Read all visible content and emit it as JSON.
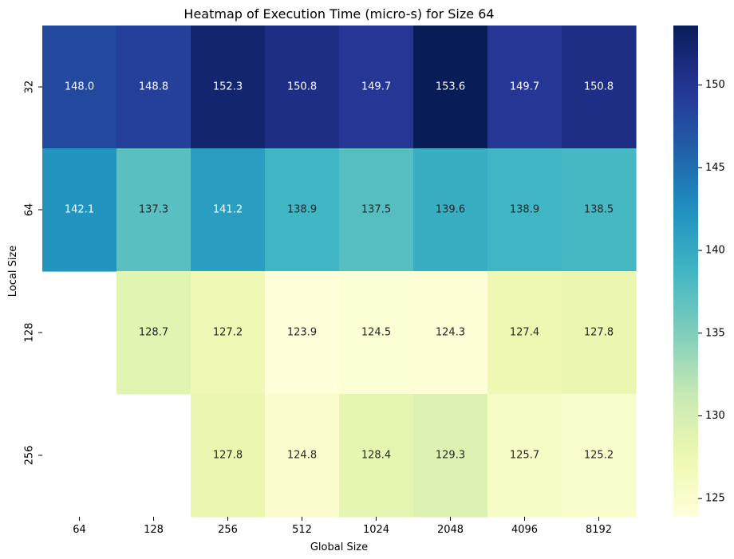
{
  "chart_data": {
    "type": "heatmap",
    "title": "Heatmap of Execution Time (micro-s) for Size 64",
    "xlabel": "Global Size",
    "ylabel": "Local Size",
    "x_categories": [
      "64",
      "128",
      "256",
      "512",
      "1024",
      "2048",
      "4096",
      "8192"
    ],
    "y_categories": [
      "32",
      "64",
      "128",
      "256"
    ],
    "values": [
      [
        148.0,
        148.8,
        152.3,
        150.8,
        149.7,
        153.6,
        149.7,
        150.8
      ],
      [
        142.1,
        137.3,
        141.2,
        138.9,
        137.5,
        139.6,
        138.9,
        138.5
      ],
      [
        null,
        128.7,
        127.2,
        123.9,
        124.5,
        124.3,
        127.4,
        127.8
      ],
      [
        null,
        null,
        127.8,
        124.8,
        128.4,
        129.3,
        125.7,
        125.2
      ]
    ],
    "value_format": "0.1f",
    "colormap": "YlGnBu",
    "color_range": [
      123.9,
      153.6
    ],
    "colorbar": {
      "ticks": [
        "125",
        "130",
        "135",
        "140",
        "145",
        "150"
      ],
      "tick_values": [
        125,
        130,
        135,
        140,
        145,
        150
      ]
    }
  }
}
